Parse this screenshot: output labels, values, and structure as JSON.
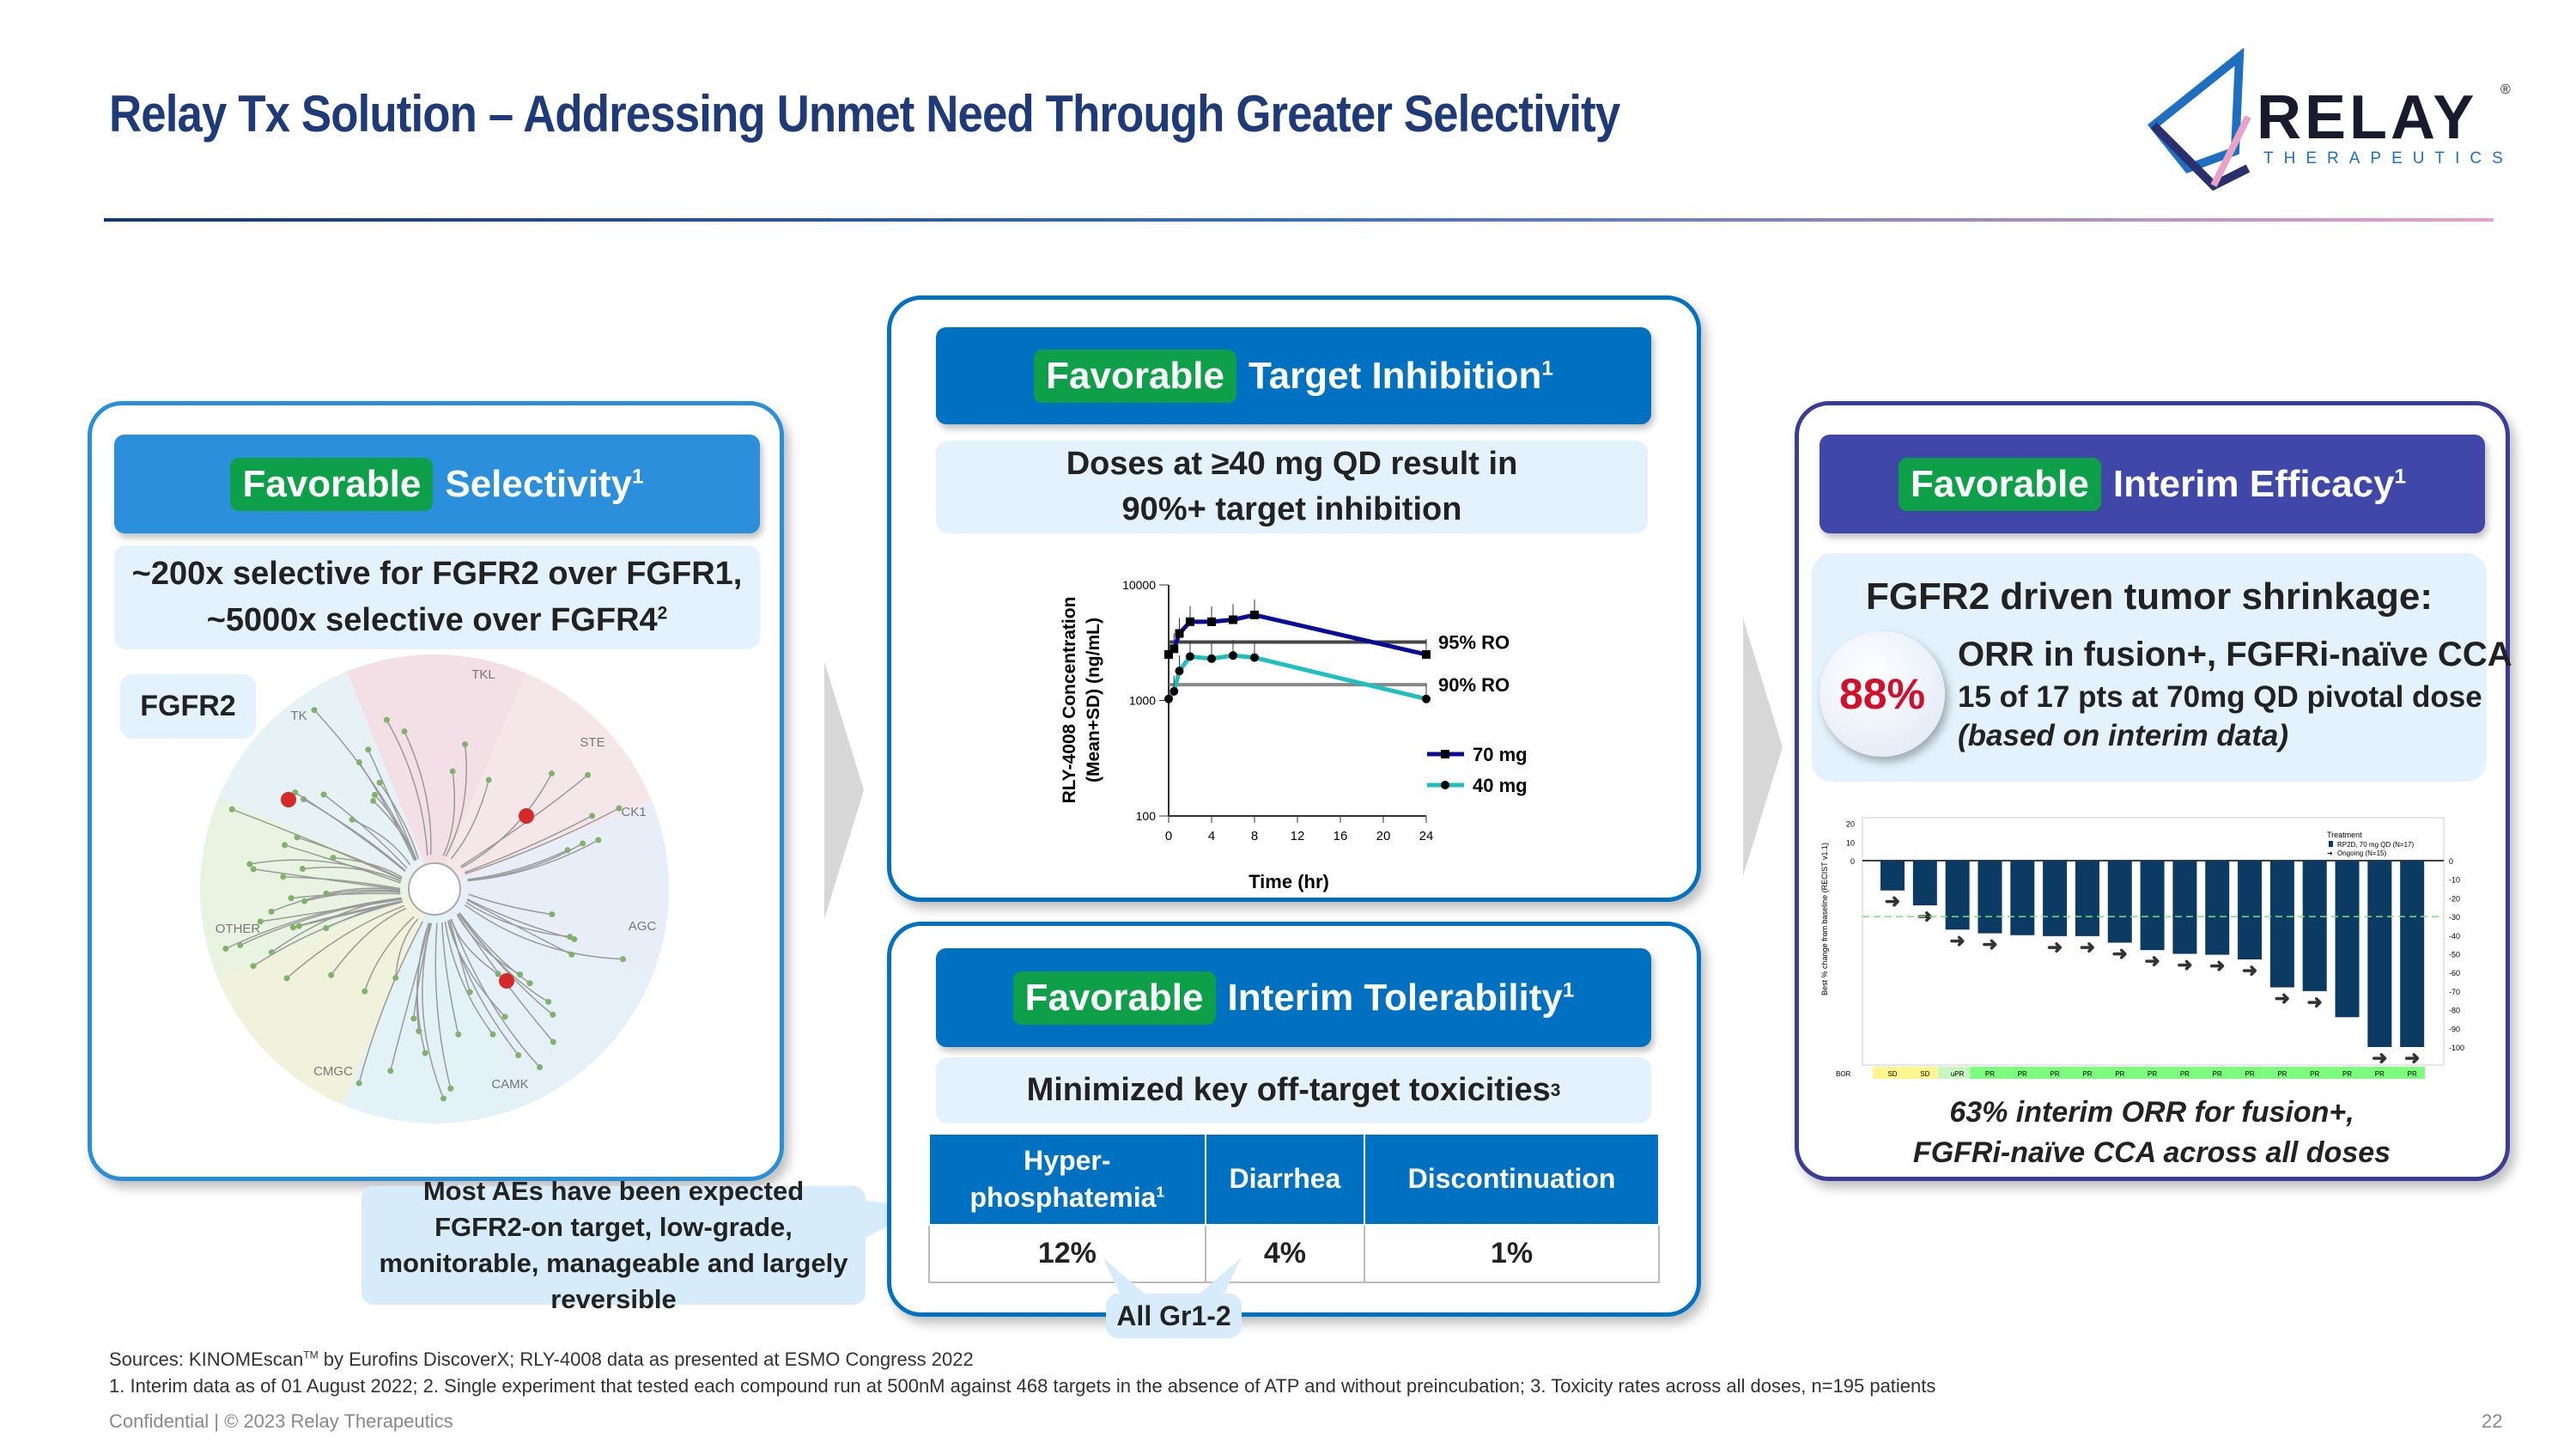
{
  "title": "Relay Tx Solution – Addressing Unmet Need Through Greater Selectivity",
  "logo": {
    "name": "RELAY",
    "sub": "THERAPEUTICS",
    "mark": "®"
  },
  "colors": {
    "navy": "#1f3a78",
    "selectivity": "#2b8fdb",
    "inhibition": "#0070c0",
    "efficacy": "#3f48a8",
    "favorable": "#0ea048"
  },
  "selectivity": {
    "tag": "Favorable",
    "label": "Selectivity",
    "sup": "1",
    "text1": "~200x selective for FGFR2 over FGFR1,",
    "text2": "~5000x selective over FGFR4",
    "text2_sup": "2",
    "callout": "FGFR2",
    "groups": [
      "TK",
      "TKL",
      "STE",
      "CK1",
      "AGC",
      "CAMK",
      "CMGC",
      "OTHER"
    ]
  },
  "inhibition": {
    "tag": "Favorable",
    "label": "Target Inhibition",
    "sup": "1",
    "text1": "Doses at ≥40 mg QD result in",
    "text2": "90%+ target inhibition"
  },
  "pk_chart": {
    "type": "line",
    "ylabel1": "RLY-4008 Concentration",
    "ylabel2": "(Mean+SD) (ng/mL)",
    "xlabel": "Time (hr)",
    "yscale": "log",
    "ylim": [
      100,
      10000
    ],
    "xlim": [
      0,
      24
    ],
    "yticks": [
      "100",
      "1000",
      "10000"
    ],
    "xticks": [
      "0",
      "4",
      "8",
      "12",
      "16",
      "20",
      "24"
    ],
    "thresholds": [
      {
        "label": "95% RO",
        "value": 3200
      },
      {
        "label": "90% RO",
        "value": 1370
      }
    ],
    "x": [
      0,
      0.5,
      1,
      2,
      4,
      6,
      8,
      24
    ],
    "series": [
      {
        "name": "70 mg",
        "color": "#0a0a9a",
        "marker": "square",
        "values": [
          2500,
          2800,
          3800,
          4800,
          4800,
          5000,
          5500,
          2500
        ]
      },
      {
        "name": "40 mg",
        "color": "#1fbfbf",
        "marker": "circle",
        "values": [
          1030,
          1200,
          1800,
          2400,
          2300,
          2450,
          2350,
          1030
        ]
      }
    ]
  },
  "tolerability": {
    "tag": "Favorable",
    "label": "Interim Tolerability",
    "sup": "1",
    "text": "Minimized key off-target toxicities",
    "text_sup": "3",
    "headers": [
      "Hyper-\nphosphatemia",
      "Diarrhea",
      "Discontinuation"
    ],
    "h1_sup": "1",
    "values": [
      "12%",
      "4%",
      "1%"
    ],
    "callout": "All Gr1-2"
  },
  "ae_callout": "Most AEs have been expected FGFR2-on target, low-grade, monitorable, manageable and largely reversible",
  "efficacy": {
    "tag": "Favorable",
    "label": "Interim Efficacy",
    "sup": "1",
    "heading": "FGFR2 driven tumor shrinkage:",
    "badge": "88%",
    "line1": "ORR in fusion+, FGFRi-naïve CCA",
    "line2": "15 of 17 pts at 70mg QD pivotal dose",
    "line3": "(based on interim data)",
    "caption1": "63% interim ORR for fusion+,",
    "caption2": "FGFRi-naïve CCA across all doses"
  },
  "waterfall": {
    "type": "bar",
    "ylabel": "Best % change from baseline (RECIST v1.1)",
    "ylim": [
      -100,
      20
    ],
    "yticks": [
      "20",
      "10",
      "0"
    ],
    "ryticks": [
      "0",
      "-10",
      "-20",
      "-30",
      "-40",
      "-50",
      "-60",
      "-70",
      "-80",
      "-90",
      "-100"
    ],
    "reference_line": -30,
    "legend_title": "Treatment",
    "legend": [
      "RP2D, 70 mg QD (N=17)",
      "Ongoing (N=15)"
    ],
    "bor_label": "BOR",
    "bar_color": "#0b3a63",
    "values": [
      -16,
      -24,
      -37,
      -39,
      -40,
      -40.5,
      -40.5,
      -44,
      -48,
      -50,
      -50.5,
      -53,
      -68,
      -70,
      -84,
      -100,
      -100
    ],
    "ongoing": [
      true,
      true,
      true,
      true,
      false,
      true,
      true,
      true,
      true,
      true,
      true,
      true,
      true,
      true,
      false,
      true,
      true
    ],
    "bor": [
      "SD",
      "SD",
      "uPR",
      "PR",
      "PR",
      "PR",
      "PR",
      "PR",
      "PR",
      "PR",
      "PR",
      "PR",
      "PR",
      "PR",
      "PR",
      "PR",
      "PR"
    ]
  },
  "footer": {
    "sources": "Sources: KINOMEscan",
    "tm": "TM",
    "sources_rest": " by Eurofins DiscoverX; RLY-4008 data as presented at ESMO Congress 2022",
    "notes": "1. Interim data as of 01 August 2022;  2. Single experiment that tested each compound run at 500nM against 468 targets in the absence of ATP and without preincubation;  3. Toxicity rates across all doses, n=195 patients",
    "confidential": "Confidential | © 2023 Relay Therapeutics",
    "page": "22"
  }
}
